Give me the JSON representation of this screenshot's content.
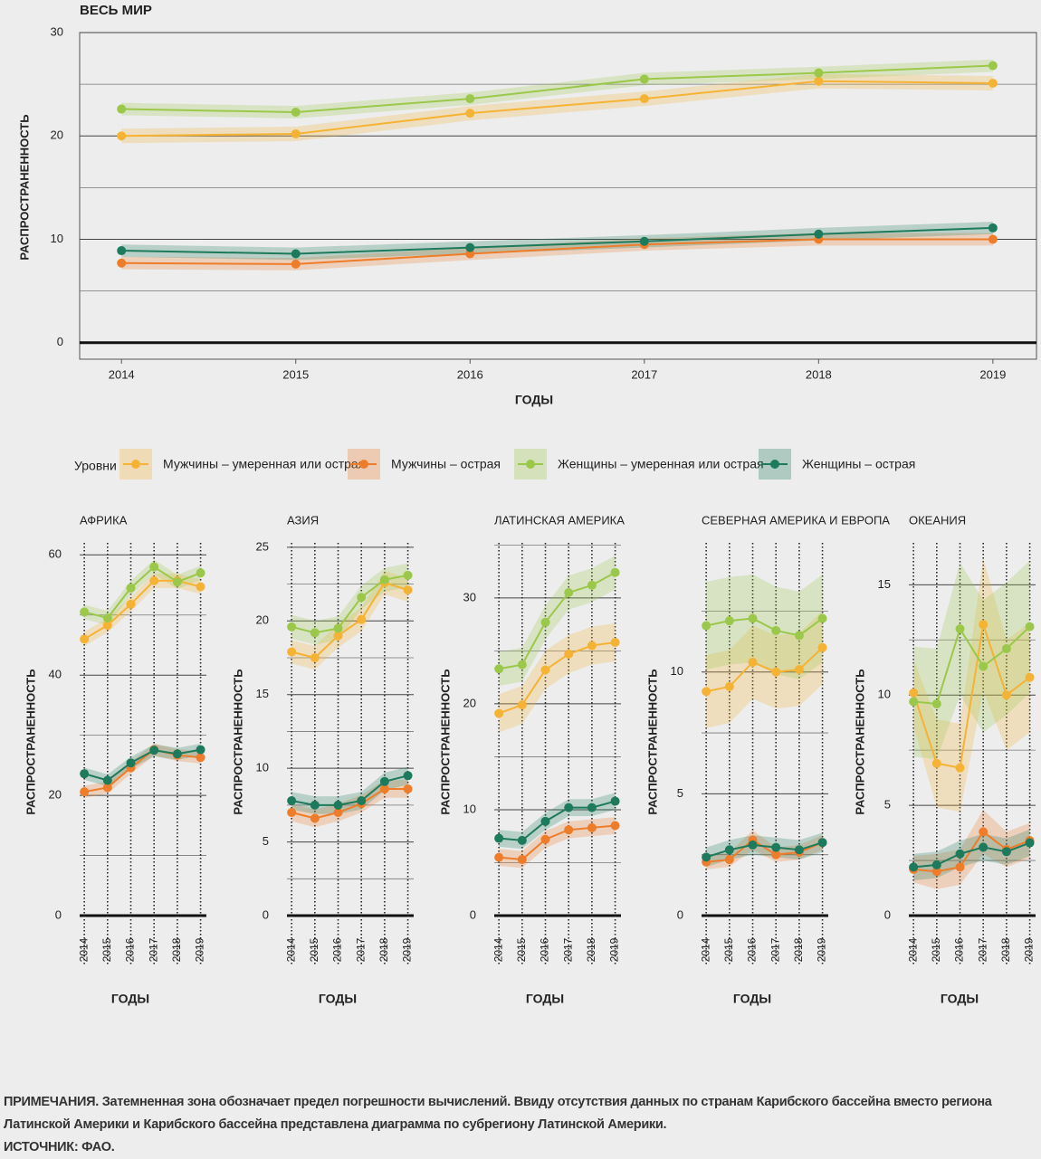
{
  "chart_data": [
    {
      "type": "line",
      "title": "ВЕСЬ МИР",
      "xlabel": "ГОДЫ",
      "ylabel": "РАСПРОСТРАНЕННОСТЬ",
      "legend_title": "Уровни",
      "x": [
        2014,
        2015,
        2016,
        2017,
        2018,
        2019
      ],
      "xlim": [
        2013.76,
        2019.25
      ],
      "xticks": [
        2014,
        2015,
        2016,
        2017,
        2018,
        2019
      ],
      "ylim": [
        -1.6,
        30
      ],
      "yticks": [
        0,
        10,
        20,
        30
      ],
      "minor_grid": [
        5,
        15,
        25
      ],
      "grid": true,
      "series": [
        {
          "name": "Мужчины – умеренная или острая",
          "color": "#f5b335",
          "values": [
            20.0,
            20.2,
            22.2,
            23.6,
            25.3,
            25.1
          ],
          "error": [
            0.7,
            0.7,
            0.7,
            0.7,
            0.7,
            0.7
          ]
        },
        {
          "name": "Мужчины – острая",
          "color": "#ee7d2b",
          "values": [
            7.7,
            7.6,
            8.6,
            9.5,
            10.0,
            10.0
          ],
          "error": [
            0.6,
            0.6,
            0.6,
            0.6,
            0.6,
            0.6
          ]
        },
        {
          "name": "Женщины – умеренная или острая",
          "color": "#9bc84a",
          "values": [
            22.6,
            22.3,
            23.6,
            25.5,
            26.1,
            26.8
          ],
          "error": [
            0.6,
            0.6,
            0.6,
            0.6,
            0.6,
            0.6
          ]
        },
        {
          "name": "Женщины – острая",
          "color": "#1e7a5c",
          "values": [
            8.9,
            8.6,
            9.2,
            9.8,
            10.5,
            11.1
          ],
          "error": [
            0.6,
            0.6,
            0.6,
            0.6,
            0.6,
            0.6
          ]
        }
      ]
    },
    {
      "type": "line",
      "title": "АФРИКА",
      "xlabel": "ГОДЫ",
      "ylabel": "РАСПРОСТРАНЕННОСТЬ",
      "x_grid": true,
      "x": [
        2014,
        2015,
        2016,
        2017,
        2018,
        2019
      ],
      "xlim": [
        2013.8,
        2019.25
      ],
      "xticks": [
        2014,
        2015,
        2016,
        2017,
        2018,
        2019
      ],
      "ylim": [
        0,
        62
      ],
      "yticks": [
        0,
        20,
        40,
        60
      ],
      "minor_grid": [
        10,
        30,
        50
      ],
      "grid": true,
      "series": [
        {
          "color": "#f5b335",
          "values": [
            46.0,
            48.3,
            51.8,
            55.7,
            55.7,
            54.7
          ],
          "error": [
            1.2,
            1.2,
            1.2,
            1.2,
            1.2,
            1.2
          ]
        },
        {
          "color": "#ee7d2b",
          "values": [
            20.6,
            21.3,
            24.6,
            27.6,
            26.7,
            26.3
          ],
          "error": [
            1.0,
            1.0,
            1.0,
            1.0,
            1.0,
            1.0
          ]
        },
        {
          "color": "#9bc84a",
          "values": [
            50.5,
            49.5,
            54.5,
            58.0,
            55.5,
            57.0
          ],
          "error": [
            1.2,
            1.2,
            1.2,
            1.2,
            1.2,
            1.2
          ]
        },
        {
          "color": "#1e7a5c",
          "values": [
            23.6,
            22.5,
            25.4,
            27.5,
            26.9,
            27.6
          ],
          "error": [
            1.0,
            1.0,
            1.0,
            1.0,
            1.0,
            1.0
          ]
        }
      ]
    },
    {
      "type": "line",
      "title": "АЗИЯ",
      "xlabel": "ГОДЫ",
      "ylabel": "РАСПРОСТРАНЕННОСТЬ",
      "x_grid": true,
      "x": [
        2014,
        2015,
        2016,
        2017,
        2018,
        2019
      ],
      "xlim": [
        2013.8,
        2019.25
      ],
      "xticks": [
        2014,
        2015,
        2016,
        2017,
        2018,
        2019
      ],
      "ylim": [
        0,
        25.3
      ],
      "yticks": [
        0,
        5,
        10,
        15,
        20,
        25
      ],
      "minor_grid": [
        2.5,
        7.5,
        12.5,
        17.5,
        22.5
      ],
      "grid": true,
      "series": [
        {
          "color": "#f5b335",
          "values": [
            17.9,
            17.5,
            19.0,
            20.1,
            22.6,
            22.1
          ],
          "error": [
            0.8,
            0.8,
            0.8,
            0.8,
            0.8,
            0.8
          ]
        },
        {
          "color": "#ee7d2b",
          "values": [
            7.0,
            6.6,
            7.0,
            7.6,
            8.6,
            8.6
          ],
          "error": [
            0.6,
            0.6,
            0.6,
            0.6,
            0.6,
            0.6
          ]
        },
        {
          "color": "#9bc84a",
          "values": [
            19.6,
            19.2,
            19.5,
            21.6,
            22.8,
            23.1
          ],
          "error": [
            0.8,
            0.8,
            0.8,
            0.8,
            0.8,
            0.8
          ]
        },
        {
          "color": "#1e7a5c",
          "values": [
            7.8,
            7.5,
            7.5,
            7.8,
            9.1,
            9.5
          ],
          "error": [
            0.6,
            0.6,
            0.6,
            0.6,
            0.6,
            0.6
          ]
        }
      ]
    },
    {
      "type": "line",
      "title": "ЛАТИНСКАЯ АМЕРИКА",
      "xlabel": "ГОДЫ",
      "ylabel": "РАСПРОСТРАНЕННОСТЬ",
      "x_grid": true,
      "x": [
        2014,
        2015,
        2016,
        2017,
        2018,
        2019
      ],
      "xlim": [
        2013.8,
        2019.25
      ],
      "xticks": [
        2014,
        2015,
        2016,
        2017,
        2018,
        2019
      ],
      "ylim": [
        0,
        35.2
      ],
      "yticks": [
        0,
        10,
        20,
        30
      ],
      "minor_grid": [
        5,
        15,
        25,
        35
      ],
      "grid": true,
      "series": [
        {
          "color": "#f5b335",
          "values": [
            19.1,
            19.9,
            23.2,
            24.7,
            25.5,
            25.8
          ],
          "error": [
            1.8,
            1.8,
            1.8,
            1.8,
            1.8,
            1.8
          ]
        },
        {
          "color": "#ee7d2b",
          "values": [
            5.5,
            5.3,
            7.2,
            8.1,
            8.3,
            8.5
          ],
          "error": [
            0.8,
            0.8,
            0.8,
            0.8,
            0.8,
            0.8
          ]
        },
        {
          "color": "#9bc84a",
          "values": [
            23.3,
            23.7,
            27.7,
            30.5,
            31.2,
            32.4
          ],
          "error": [
            1.6,
            1.6,
            1.6,
            1.6,
            1.6,
            1.6
          ]
        },
        {
          "color": "#1e7a5c",
          "values": [
            7.3,
            7.1,
            8.9,
            10.2,
            10.2,
            10.8
          ],
          "error": [
            0.8,
            0.8,
            0.8,
            0.8,
            0.8,
            0.8
          ]
        }
      ]
    },
    {
      "type": "line",
      "title": "СЕВЕРНАЯ АМЕРИКА И ЕВРОПА",
      "xlabel": "ГОДЫ",
      "ylabel": "РАСПРОСТРАНЕННОСТЬ",
      "x_grid": true,
      "x": [
        2014,
        2015,
        2016,
        2017,
        2018,
        2019
      ],
      "xlim": [
        2013.8,
        2019.25
      ],
      "xticks": [
        2014,
        2015,
        2016,
        2017,
        2018,
        2019
      ],
      "ylim": [
        0,
        15.3
      ],
      "yticks": [
        0,
        5,
        10
      ],
      "minor_grid": [
        2.5,
        7.5,
        12.5
      ],
      "grid": true,
      "series": [
        {
          "color": "#f5b335",
          "values": [
            9.2,
            9.4,
            10.4,
            10.0,
            10.1,
            11.0
          ],
          "error": [
            1.5,
            1.5,
            1.5,
            1.5,
            1.5,
            1.5
          ]
        },
        {
          "color": "#ee7d2b",
          "values": [
            2.2,
            2.3,
            3.1,
            2.5,
            2.6,
            3.0
          ],
          "error": [
            0.3,
            0.3,
            0.4,
            0.3,
            0.3,
            0.3
          ]
        },
        {
          "color": "#9bc84a",
          "values": [
            11.9,
            12.1,
            12.2,
            11.7,
            11.5,
            12.2
          ],
          "error": [
            1.8,
            1.8,
            1.8,
            1.8,
            1.8,
            1.8
          ]
        },
        {
          "color": "#1e7a5c",
          "values": [
            2.4,
            2.7,
            2.9,
            2.8,
            2.7,
            3.0
          ],
          "error": [
            0.4,
            0.4,
            0.4,
            0.4,
            0.4,
            0.4
          ]
        }
      ]
    },
    {
      "type": "line",
      "title": "ОКЕАНИЯ",
      "xlabel": "ГОДЫ",
      "ylabel": "РАСПРОСТРАНЕННОСТЬ",
      "x_grid": true,
      "x": [
        2014,
        2015,
        2016,
        2017,
        2018,
        2019
      ],
      "xlim": [
        2013.8,
        2019.25
      ],
      "xticks": [
        2014,
        2015,
        2016,
        2017,
        2018,
        2019
      ],
      "ylim": [
        0,
        16.9
      ],
      "yticks": [
        0,
        5,
        10,
        15
      ],
      "minor_grid": [
        2.5,
        7.5,
        12.5
      ],
      "grid": true,
      "series": [
        {
          "color": "#f5b335",
          "values": [
            10.1,
            6.9,
            6.7,
            13.2,
            10.0,
            10.8
          ],
          "error": [
            1.5,
            2.0,
            2.0,
            3.0,
            2.5,
            2.5
          ]
        },
        {
          "color": "#ee7d2b",
          "values": [
            2.1,
            2.0,
            2.2,
            3.8,
            3.0,
            3.4
          ],
          "error": [
            0.6,
            0.8,
            0.8,
            1.0,
            0.8,
            0.8
          ]
        },
        {
          "color": "#9bc84a",
          "values": [
            9.7,
            9.6,
            13.0,
            11.3,
            12.1,
            13.1
          ],
          "error": [
            2.5,
            2.5,
            3.0,
            3.0,
            3.0,
            3.0
          ]
        },
        {
          "color": "#1e7a5c",
          "values": [
            2.2,
            2.3,
            2.8,
            3.1,
            2.9,
            3.3
          ],
          "error": [
            0.6,
            0.6,
            0.6,
            0.6,
            0.6,
            0.6
          ]
        }
      ]
    }
  ],
  "notes": "ПРИМЕЧАНИЯ. Затемненная зона обозначает предел погрешности вычислений. Ввиду отсутствия данных по странам Карибского бассейна вместо региона Латинской Америки и Карибского бассейна представлена диаграмма по субрегиону Латинской Америки.",
  "source": "ИСТОЧНИК: ФАО."
}
